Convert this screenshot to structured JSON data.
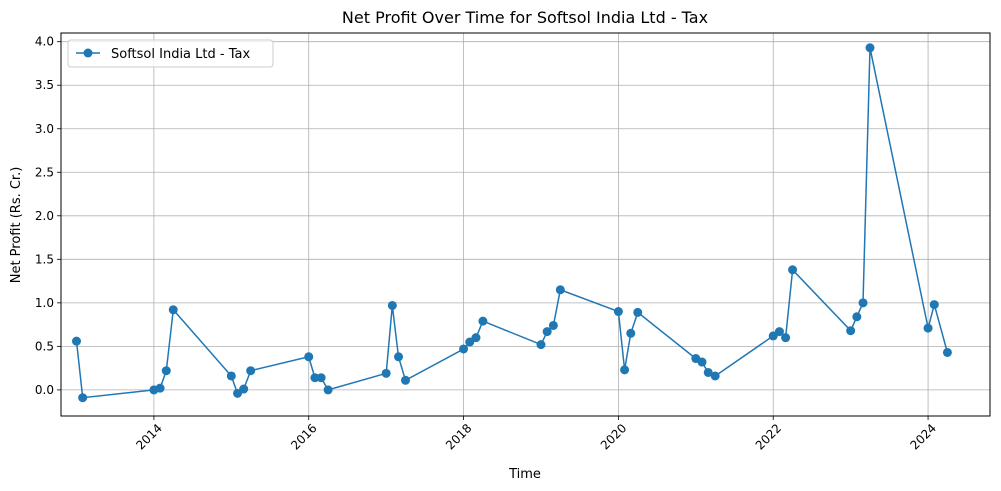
{
  "chart_data": {
    "type": "line",
    "title": "Net Profit Over Time for Softsol India Ltd - Tax",
    "xlabel": "Time",
    "ylabel": "Net Profit (Rs. Cr.)",
    "xlim": [
      2012.8,
      2024.8
    ],
    "ylim": [
      -0.3,
      4.1
    ],
    "x_ticks": [
      2014,
      2016,
      2018,
      2020,
      2022,
      2024
    ],
    "x_tick_labels": [
      "2014",
      "2016",
      "2018",
      "2020",
      "2022",
      "2024"
    ],
    "y_ticks": [
      0.0,
      0.5,
      1.0,
      1.5,
      2.0,
      2.5,
      3.0,
      3.5,
      4.0
    ],
    "y_tick_labels": [
      "0.0",
      "0.5",
      "1.0",
      "1.5",
      "2.0",
      "2.5",
      "3.0",
      "3.5",
      "4.0"
    ],
    "grid": true,
    "legend_position": "top-left",
    "color": "#1f77b4",
    "series": [
      {
        "name": "Softsol India Ltd - Tax",
        "x": [
          2013.0,
          2013.08,
          2014.0,
          2014.08,
          2014.16,
          2014.25,
          2015.0,
          2015.08,
          2015.16,
          2015.25,
          2016.0,
          2016.08,
          2016.16,
          2016.25,
          2017.0,
          2017.08,
          2017.16,
          2017.25,
          2018.0,
          2018.08,
          2018.16,
          2018.25,
          2019.0,
          2019.08,
          2019.16,
          2019.25,
          2020.0,
          2020.08,
          2020.16,
          2020.25,
          2021.0,
          2021.08,
          2021.16,
          2021.25,
          2022.0,
          2022.08,
          2022.16,
          2022.25,
          2023.0,
          2023.08,
          2023.16,
          2023.25,
          2024.0,
          2024.08,
          2024.25
        ],
        "y": [
          0.56,
          -0.09,
          0.0,
          0.02,
          0.22,
          0.92,
          0.16,
          -0.04,
          0.01,
          0.22,
          0.38,
          0.14,
          0.14,
          0.0,
          0.19,
          0.97,
          0.38,
          0.11,
          0.47,
          0.55,
          0.6,
          0.79,
          0.52,
          0.67,
          0.74,
          1.15,
          0.9,
          0.23,
          0.65,
          0.89,
          0.36,
          0.32,
          0.2,
          0.16,
          0.62,
          0.67,
          0.6,
          1.38,
          0.68,
          0.84,
          1.0,
          3.93,
          0.71,
          0.98,
          0.43
        ]
      }
    ]
  }
}
